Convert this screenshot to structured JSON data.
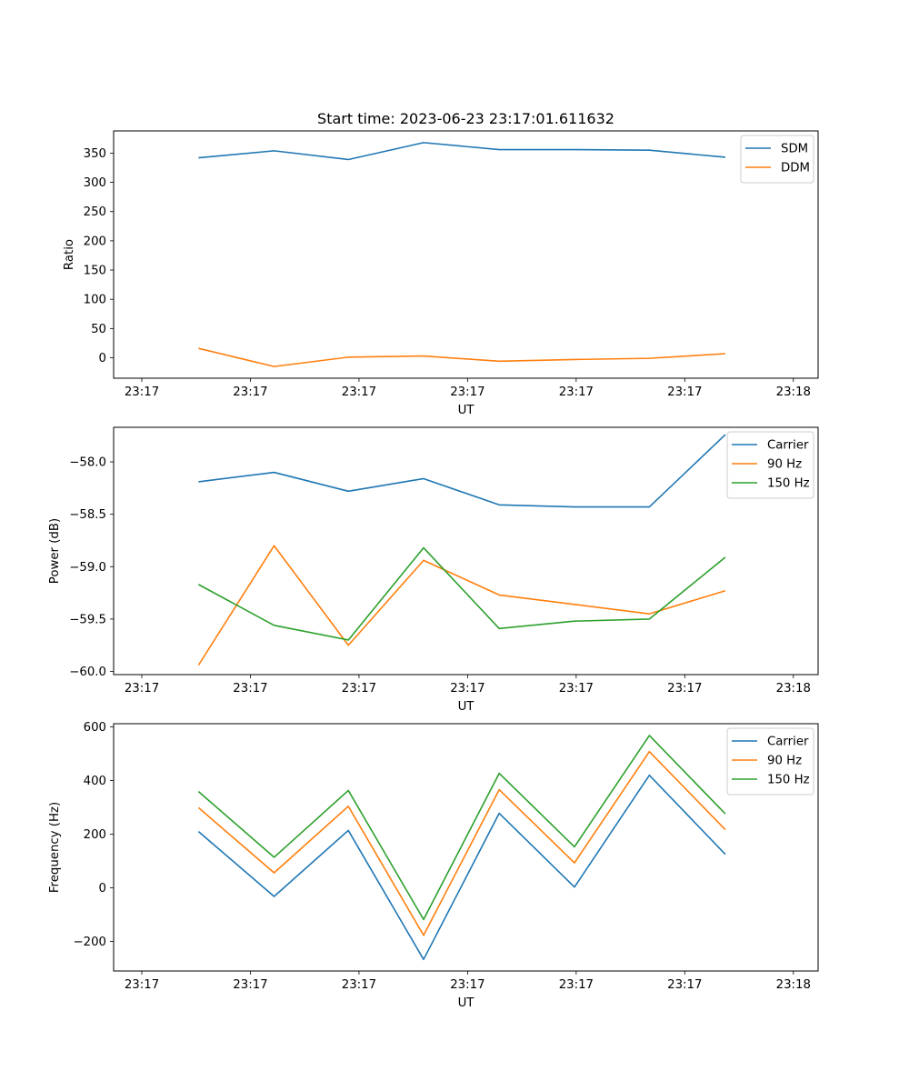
{
  "figure": {
    "title": "Start time: 2023-06-23 23:17:01.611632"
  },
  "chart_data": [
    {
      "type": "line",
      "xlabel": "UT",
      "ylabel": "Ratio",
      "x_tick_labels": [
        "23:17",
        "23:17",
        "23:17",
        "23:17",
        "23:17",
        "23:17",
        "23:18"
      ],
      "x": [
        1.97,
        4.17,
        6.33,
        8.52,
        10.72,
        12.91,
        15.09,
        17.3
      ],
      "xlim": [
        -0.5,
        20.0
      ],
      "y_ticks": [
        0,
        50,
        100,
        150,
        200,
        250,
        300,
        350
      ],
      "ylim": [
        -35,
        388
      ],
      "grid": false,
      "legend": "top-right",
      "series": [
        {
          "name": "SDM",
          "color": "#1f77b4",
          "values": [
            342,
            354,
            339,
            368,
            356,
            356,
            355,
            343
          ]
        },
        {
          "name": "DDM",
          "color": "#ff7f0e",
          "values": [
            16,
            -15,
            1,
            3,
            -6,
            -3,
            -1,
            7
          ]
        }
      ]
    },
    {
      "type": "line",
      "xlabel": "UT",
      "ylabel": "Power (dB)",
      "x_tick_labels": [
        "23:17",
        "23:17",
        "23:17",
        "23:17",
        "23:17",
        "23:17",
        "23:18"
      ],
      "x": [
        1.97,
        4.17,
        6.33,
        8.52,
        10.72,
        12.91,
        15.09,
        17.3
      ],
      "xlim": [
        -0.5,
        20.0
      ],
      "y_ticks": [
        -60.0,
        -59.5,
        -59.0,
        -58.5,
        -58.0
      ],
      "y_tick_labels": [
        "−60.0",
        "−59.5",
        "−59.0",
        "−58.5",
        "−58.0"
      ],
      "ylim": [
        -60.03,
        -57.67
      ],
      "grid": false,
      "legend": "top-right",
      "series": [
        {
          "name": "Carrier",
          "color": "#1f77b4",
          "values": [
            -58.19,
            -58.1,
            -58.28,
            -58.16,
            -58.41,
            -58.43,
            -58.43,
            -57.74
          ]
        },
        {
          "name": "90 Hz",
          "color": "#ff7f0e",
          "values": [
            -59.94,
            -58.8,
            -59.75,
            -58.94,
            -59.27,
            -59.36,
            -59.45,
            -59.23
          ]
        },
        {
          "name": "150 Hz",
          "color": "#2ca02c",
          "values": [
            -59.17,
            -59.56,
            -59.7,
            -58.82,
            -59.59,
            -59.52,
            -59.5,
            -58.91
          ]
        }
      ]
    },
    {
      "type": "line",
      "xlabel": "UT",
      "ylabel": "Frequency (Hz)",
      "x_tick_labels": [
        "23:17",
        "23:17",
        "23:17",
        "23:17",
        "23:17",
        "23:17",
        "23:18"
      ],
      "x": [
        1.97,
        4.17,
        6.33,
        8.52,
        10.72,
        12.91,
        15.09,
        17.3
      ],
      "xlim": [
        -0.5,
        20.0
      ],
      "y_ticks": [
        -200,
        0,
        200,
        400,
        600
      ],
      "y_tick_labels": [
        "−200",
        "0",
        "200",
        "400",
        "600"
      ],
      "ylim": [
        -310,
        612
      ],
      "grid": false,
      "legend": "top-right",
      "series": [
        {
          "name": "Carrier",
          "color": "#1f77b4",
          "values": [
            210,
            -32,
            214,
            -267,
            278,
            3,
            420,
            125
          ]
        },
        {
          "name": "90 Hz",
          "color": "#ff7f0e",
          "values": [
            299,
            56,
            304,
            -177,
            366,
            93,
            508,
            217
          ]
        },
        {
          "name": "150 Hz",
          "color": "#2ca02c",
          "values": [
            359,
            114,
            363,
            -118,
            427,
            153,
            568,
            276
          ]
        }
      ]
    }
  ]
}
